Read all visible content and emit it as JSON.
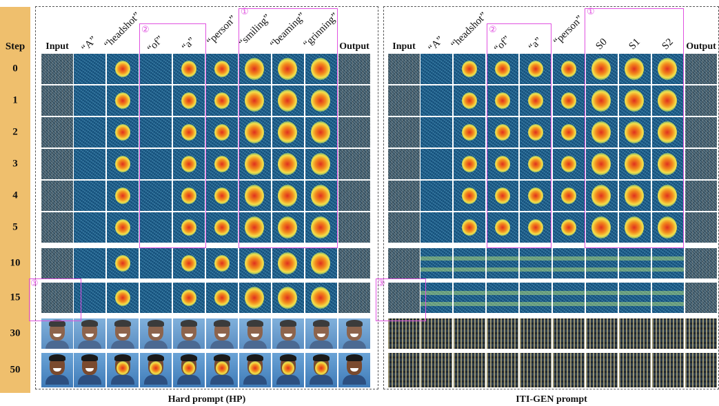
{
  "step_header": "Step",
  "steps": [
    "0",
    "1",
    "2",
    "3",
    "4",
    "5",
    "10",
    "15",
    "30",
    "50"
  ],
  "panels": [
    {
      "title": "Hard prompt (HP)",
      "columns": [
        "Input",
        "“A”",
        "“headshot”",
        "“of”",
        "“a”",
        "“person”",
        "“smiling”",
        "“beaming”",
        "“grinning”",
        "Output"
      ],
      "markers": [
        "①",
        "②",
        "③"
      ]
    },
    {
      "title": "ITI-GEN prompt",
      "columns": [
        "Input",
        "“A”",
        "“headshot”",
        "“of”",
        "“a”",
        "“person”",
        "S0",
        "S1",
        "S2",
        "Output"
      ],
      "markers": [
        "①",
        "②",
        "③"
      ]
    }
  ],
  "colors": {
    "step_bar": "#efbf6d",
    "highlight_box": "#e050e0",
    "heat_high": "#e0301e",
    "heat_low": "#1e5f8a"
  }
}
